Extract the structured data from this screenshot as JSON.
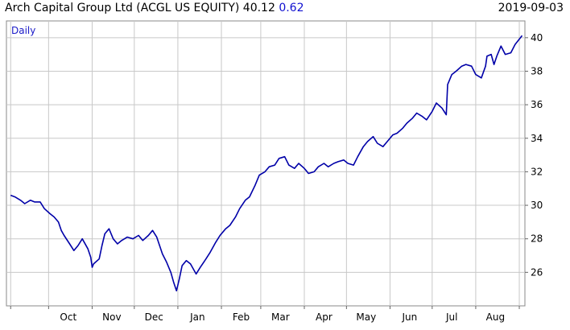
{
  "header": {
    "title": "Arch Capital Group Ltd (ACGL US EQUITY) 40.12",
    "change": "0.62",
    "date": "2019-09-03"
  },
  "colors": {
    "line": "#0000a8",
    "grid": "#c8c8c8",
    "axis": "#666666",
    "period_label": "#1a1ac8",
    "change": "#1010d0"
  },
  "chart_data": {
    "type": "line",
    "period_label": "Daily",
    "title": "",
    "xlabel": "",
    "ylabel": "",
    "ylim": [
      24.0,
      41.0
    ],
    "y_ticks": [
      26,
      28,
      30,
      32,
      34,
      36,
      38,
      40
    ],
    "x_tick_labels": [
      "Oct",
      "Nov",
      "Dec",
      "Jan",
      "Feb",
      "Mar",
      "Apr",
      "May",
      "Jun",
      "Jul",
      "Aug"
    ],
    "x_label_dates": [
      "2018-10-15",
      "2018-11-15",
      "2018-12-15",
      "2019-01-15",
      "2019-02-15",
      "2019-03-15",
      "2019-04-15",
      "2019-05-15",
      "2019-06-15",
      "2019-07-15",
      "2019-08-15"
    ],
    "x_tick_dates": [
      "2018-09-04",
      "2018-10-01",
      "2018-11-01",
      "2018-12-01",
      "2019-01-01",
      "2019-02-01",
      "2019-03-01",
      "2019-04-01",
      "2019-05-01",
      "2019-06-01",
      "2019-07-01",
      "2019-08-01",
      "2019-09-01"
    ],
    "xlim": [
      "2018-09-01",
      "2019-09-05"
    ],
    "series": [
      {
        "points": [
          [
            "2018-09-04",
            30.6
          ],
          [
            "2018-09-07",
            30.5
          ],
          [
            "2018-09-11",
            30.3
          ],
          [
            "2018-09-14",
            30.1
          ],
          [
            "2018-09-18",
            30.3
          ],
          [
            "2018-09-21",
            30.2
          ],
          [
            "2018-09-25",
            30.2
          ],
          [
            "2018-09-28",
            29.8
          ],
          [
            "2018-10-02",
            29.5
          ],
          [
            "2018-10-05",
            29.3
          ],
          [
            "2018-10-08",
            29.0
          ],
          [
            "2018-10-10",
            28.5
          ],
          [
            "2018-10-12",
            28.2
          ],
          [
            "2018-10-16",
            27.7
          ],
          [
            "2018-10-19",
            27.3
          ],
          [
            "2018-10-22",
            27.6
          ],
          [
            "2018-10-25",
            28.0
          ],
          [
            "2018-10-29",
            27.4
          ],
          [
            "2018-10-31",
            26.9
          ],
          [
            "2018-11-01",
            26.3
          ],
          [
            "2018-11-02",
            26.5
          ],
          [
            "2018-11-06",
            26.8
          ],
          [
            "2018-11-08",
            27.6
          ],
          [
            "2018-11-10",
            28.3
          ],
          [
            "2018-11-13",
            28.6
          ],
          [
            "2018-11-16",
            28.0
          ],
          [
            "2018-11-19",
            27.7
          ],
          [
            "2018-11-22",
            27.9
          ],
          [
            "2018-11-26",
            28.1
          ],
          [
            "2018-11-30",
            28.0
          ],
          [
            "2018-12-04",
            28.2
          ],
          [
            "2018-12-07",
            27.9
          ],
          [
            "2018-12-11",
            28.2
          ],
          [
            "2018-12-14",
            28.5
          ],
          [
            "2018-12-17",
            28.1
          ],
          [
            "2018-12-19",
            27.6
          ],
          [
            "2018-12-21",
            27.1
          ],
          [
            "2018-12-24",
            26.6
          ],
          [
            "2018-12-27",
            26.0
          ],
          [
            "2018-12-29",
            25.4
          ],
          [
            "2018-12-31",
            24.9
          ],
          [
            "2019-01-02",
            25.6
          ],
          [
            "2019-01-04",
            26.4
          ],
          [
            "2019-01-07",
            26.7
          ],
          [
            "2019-01-10",
            26.5
          ],
          [
            "2019-01-14",
            25.9
          ],
          [
            "2019-01-17",
            26.3
          ],
          [
            "2019-01-21",
            26.8
          ],
          [
            "2019-01-24",
            27.2
          ],
          [
            "2019-01-28",
            27.8
          ],
          [
            "2019-01-31",
            28.2
          ],
          [
            "2019-02-04",
            28.6
          ],
          [
            "2019-02-07",
            28.8
          ],
          [
            "2019-02-11",
            29.3
          ],
          [
            "2019-02-14",
            29.8
          ],
          [
            "2019-02-18",
            30.3
          ],
          [
            "2019-02-21",
            30.5
          ],
          [
            "2019-02-25",
            31.2
          ],
          [
            "2019-02-28",
            31.8
          ],
          [
            "2019-03-04",
            32.0
          ],
          [
            "2019-03-07",
            32.3
          ],
          [
            "2019-03-11",
            32.4
          ],
          [
            "2019-03-14",
            32.8
          ],
          [
            "2019-03-18",
            32.9
          ],
          [
            "2019-03-21",
            32.4
          ],
          [
            "2019-03-25",
            32.2
          ],
          [
            "2019-03-28",
            32.5
          ],
          [
            "2019-04-01",
            32.2
          ],
          [
            "2019-04-04",
            31.9
          ],
          [
            "2019-04-08",
            32.0
          ],
          [
            "2019-04-11",
            32.3
          ],
          [
            "2019-04-15",
            32.5
          ],
          [
            "2019-04-18",
            32.3
          ],
          [
            "2019-04-22",
            32.5
          ],
          [
            "2019-04-25",
            32.6
          ],
          [
            "2019-04-29",
            32.7
          ],
          [
            "2019-05-02",
            32.5
          ],
          [
            "2019-05-06",
            32.4
          ],
          [
            "2019-05-09",
            32.9
          ],
          [
            "2019-05-13",
            33.5
          ],
          [
            "2019-05-16",
            33.8
          ],
          [
            "2019-05-20",
            34.1
          ],
          [
            "2019-05-23",
            33.7
          ],
          [
            "2019-05-27",
            33.5
          ],
          [
            "2019-05-30",
            33.8
          ],
          [
            "2019-06-03",
            34.2
          ],
          [
            "2019-06-06",
            34.3
          ],
          [
            "2019-06-10",
            34.6
          ],
          [
            "2019-06-13",
            34.9
          ],
          [
            "2019-06-17",
            35.2
          ],
          [
            "2019-06-20",
            35.5
          ],
          [
            "2019-06-24",
            35.3
          ],
          [
            "2019-06-27",
            35.1
          ],
          [
            "2019-07-01",
            35.6
          ],
          [
            "2019-07-04",
            36.1
          ],
          [
            "2019-07-08",
            35.8
          ],
          [
            "2019-07-11",
            35.4
          ],
          [
            "2019-07-12",
            37.2
          ],
          [
            "2019-07-15",
            37.8
          ],
          [
            "2019-07-18",
            38.0
          ],
          [
            "2019-07-22",
            38.3
          ],
          [
            "2019-07-25",
            38.4
          ],
          [
            "2019-07-29",
            38.3
          ],
          [
            "2019-08-01",
            37.8
          ],
          [
            "2019-08-05",
            37.6
          ],
          [
            "2019-08-08",
            38.3
          ],
          [
            "2019-08-09",
            38.9
          ],
          [
            "2019-08-12",
            39.0
          ],
          [
            "2019-08-14",
            38.4
          ],
          [
            "2019-08-16",
            38.9
          ],
          [
            "2019-08-19",
            39.5
          ],
          [
            "2019-08-22",
            39.0
          ],
          [
            "2019-08-26",
            39.1
          ],
          [
            "2019-08-29",
            39.6
          ],
          [
            "2019-09-03",
            40.12
          ]
        ]
      }
    ]
  }
}
